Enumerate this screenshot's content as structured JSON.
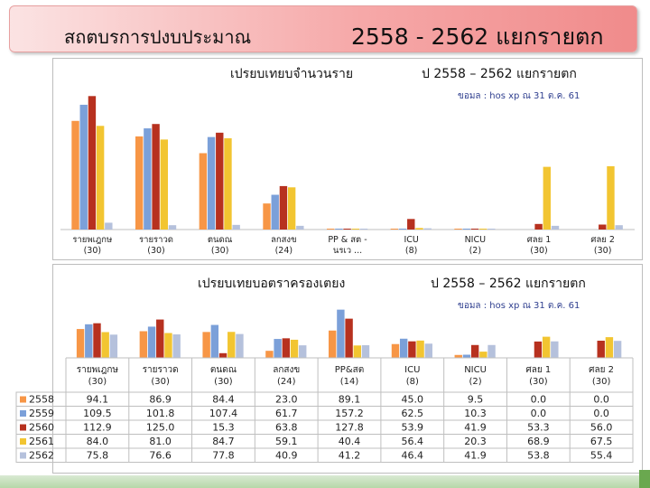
{
  "header": {
    "title_left": "สถตบรการปงบประมาณ",
    "title_right": "2558 - 2562 แยกรายตก"
  },
  "chart1": {
    "title_a": "เปรยบเทยบจำนวนราย",
    "title_b": "ป 2558 – 2562 แยกรายตก",
    "source": "ขอมล : hos xp ณ 31 ต.ค. 61"
  },
  "chart2": {
    "title_a": "เปรยบเทยบอตราครองเตยง",
    "title_b": "ป 2558 – 2562 แยกรายตก",
    "source": "ขอมล : hos xp ณ 31 ต.ค. 61"
  },
  "colors": {
    "2558": "#f79646",
    "2559": "#7ba0d9",
    "2560": "#b7311f",
    "2561": "#f2c531",
    "2562": "#b5c1dc"
  },
  "chart_data": [
    {
      "type": "bar",
      "categories": [
        "รายพเฎกษ (30)",
        "รายราวด (30)",
        "ตนดณ (30)",
        "ลกสงข (24)",
        "PP & สต - นรเว ...",
        "ICU(8)",
        "NICU(2)",
        "ศลย 1(30)",
        "ศลย 2(30)"
      ],
      "series": [
        {
          "name": "2558",
          "values": [
            1750,
            1500,
            1230,
            420,
            8,
            10,
            2,
            0,
            0
          ]
        },
        {
          "name": "2559",
          "values": [
            2010,
            1630,
            1490,
            560,
            12,
            14,
            3,
            0,
            0
          ]
        },
        {
          "name": "2560",
          "values": [
            2150,
            1700,
            1560,
            700,
            14,
            170,
            4,
            90,
            80
          ]
        },
        {
          "name": "2561",
          "values": [
            1670,
            1450,
            1470,
            680,
            10,
            25,
            3,
            1010,
            1020
          ]
        },
        {
          "name": "2562",
          "values": [
            110,
            70,
            75,
            60,
            4,
            20,
            2,
            60,
            70
          ]
        }
      ],
      "ylim": [
        0,
        2300
      ]
    },
    {
      "type": "bar",
      "categories": [
        "รายพเฎกษ (30)",
        "รายราวด (30)",
        "ตนดณ (30)",
        "ลกสงข (24)",
        "PP&สต (14)",
        "ICU(8)",
        "NICU(2)",
        "ศลย 1(30)",
        "ศลย 2(30)"
      ],
      "series": [
        {
          "name": "2558",
          "values": [
            94.1,
            86.9,
            84.4,
            23.0,
            89.1,
            45.0,
            9.5,
            0.0,
            0.0
          ]
        },
        {
          "name": "2559",
          "values": [
            109.5,
            101.8,
            107.4,
            61.7,
            157.2,
            62.5,
            10.3,
            0.0,
            0.0
          ]
        },
        {
          "name": "2560",
          "values": [
            112.9,
            125.0,
            15.3,
            63.8,
            127.8,
            53.9,
            41.9,
            53.3,
            56.0
          ]
        },
        {
          "name": "2561",
          "values": [
            84.0,
            81.0,
            84.7,
            59.1,
            40.4,
            56.4,
            20.3,
            68.9,
            67.5
          ]
        },
        {
          "name": "2562",
          "values": [
            75.8,
            76.6,
            77.8,
            40.9,
            41.2,
            46.4,
            41.9,
            53.8,
            55.4
          ]
        }
      ],
      "table": {
        "rows": [
          {
            "label": "2558",
            "cells": [
              "94.1",
              "86.9",
              "84.4",
              "23.0",
              "89.1",
              "45.0",
              "9.5",
              "0.0",
              "0.0"
            ]
          },
          {
            "label": "2559",
            "cells": [
              "109.5",
              "101.8",
              "107.4",
              "61.7",
              "157.2",
              "62.5",
              "10.3",
              "0.0",
              "0.0"
            ]
          },
          {
            "label": "2560",
            "cells": [
              "112.9",
              "125.0",
              "15.3",
              "63.8",
              "127.8",
              "53.9",
              "41.9",
              "53.3",
              "56.0"
            ]
          },
          {
            "label": "2561",
            "cells": [
              "84.0",
              "81.0",
              "84.7",
              "59.1",
              "40.4",
              "56.4",
              "20.3",
              "68.9",
              "67.5"
            ]
          },
          {
            "label": "2562",
            "cells": [
              "75.8",
              "76.6",
              "77.8",
              "40.9",
              "41.2",
              "46.4",
              "41.9",
              "53.8",
              "55.4"
            ]
          }
        ]
      },
      "ylim": [
        0,
        165
      ]
    }
  ]
}
